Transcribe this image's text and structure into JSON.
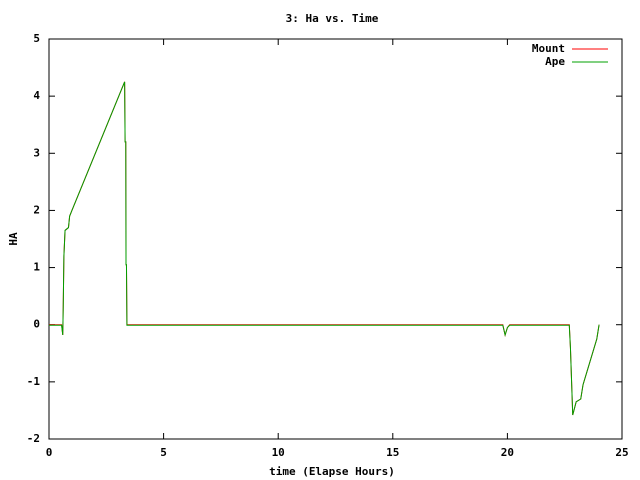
{
  "chart_data": {
    "type": "line",
    "title": "3: Ha vs. Time",
    "x_label": "time (Elapse Hours)",
    "y_label": "HA",
    "x": [
      0,
      0.55,
      0.6,
      0.62,
      0.65,
      0.7,
      0.85,
      0.9,
      1.0,
      3.3,
      3.32,
      3.35,
      3.36,
      3.38,
      3.4,
      19.8,
      19.9,
      20.0,
      20.1,
      22.7,
      22.75,
      22.85,
      23.0,
      23.2,
      23.3,
      23.9,
      24.0
    ],
    "series": [
      {
        "name": "Mount",
        "color": "#ff0000",
        "values": [
          0,
          0,
          -0.18,
          0.3,
          1.2,
          1.65,
          1.7,
          1.9,
          2.0,
          4.25,
          3.2,
          3.2,
          1.05,
          1.05,
          0,
          0,
          -0.18,
          -0.05,
          0,
          0,
          -0.4,
          -1.58,
          -1.35,
          -1.3,
          -1.05,
          -0.25,
          0
        ]
      },
      {
        "name": "Ape",
        "color": "#00a000",
        "values": [
          -0.01,
          -0.01,
          -0.18,
          0.3,
          1.2,
          1.65,
          1.7,
          1.9,
          2.0,
          4.25,
          3.2,
          3.2,
          1.05,
          1.05,
          -0.01,
          -0.01,
          -0.18,
          -0.05,
          -0.01,
          -0.01,
          -0.4,
          -1.58,
          -1.35,
          -1.3,
          -1.05,
          -0.25,
          0
        ]
      }
    ],
    "xlim": [
      0,
      25
    ],
    "xticks": [
      0,
      5,
      10,
      15,
      20,
      25
    ],
    "ylim": [
      -2,
      5
    ],
    "yticks": [
      -2,
      -1,
      0,
      1,
      2,
      3,
      4,
      5
    ],
    "legend": "top-right"
  }
}
